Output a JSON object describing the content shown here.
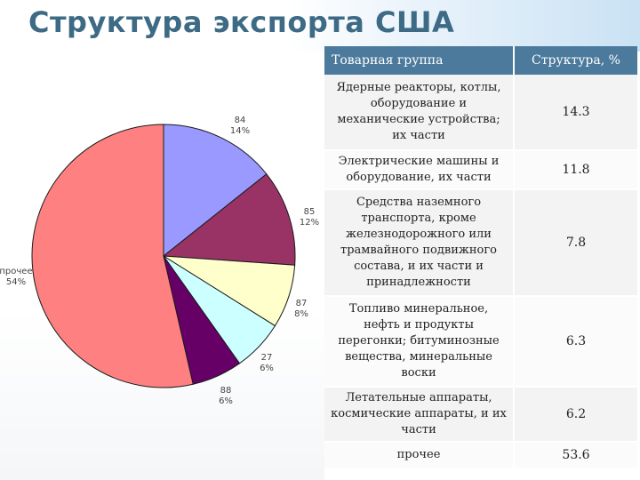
{
  "title": "Структура экспорта США",
  "table": {
    "headers": {
      "group": "Товарная группа",
      "structure": "Структура, %"
    },
    "rows": [
      {
        "group": "Ядерные реакторы, котлы, оборудование и механические устройства; их части",
        "value": "14.3"
      },
      {
        "group": "Электрические машины и оборудование, их части",
        "value": "11.8"
      },
      {
        "group": "Средства наземного транспорта, кроме железнодорожного или трамвайного подвижного состава, и их части и принадлежности",
        "value": "7.8"
      },
      {
        "group": "Топливо минеральное, нефть и продукты перегонки; битуминозные вещества, минеральные воски",
        "value": "6.3"
      },
      {
        "group": "Летательные аппараты, космические аппараты, и их части",
        "value": "6.2"
      },
      {
        "group": "прочее",
        "value": "53.6"
      }
    ]
  },
  "chart_data": {
    "type": "pie",
    "slices": [
      {
        "label": "84",
        "percent_label": "14%",
        "value": 14.3,
        "color": "#9999ff"
      },
      {
        "label": "85",
        "percent_label": "12%",
        "value": 11.8,
        "color": "#993366"
      },
      {
        "label": "87",
        "percent_label": "8%",
        "value": 7.8,
        "color": "#ffffcc"
      },
      {
        "label": "27",
        "percent_label": "6%",
        "value": 6.3,
        "color": "#ccffff"
      },
      {
        "label": "88",
        "percent_label": "6%",
        "value": 6.2,
        "color": "#660066"
      },
      {
        "label": "прочее",
        "percent_label": "54%",
        "value": 53.6,
        "color": "#ff8080"
      }
    ]
  }
}
